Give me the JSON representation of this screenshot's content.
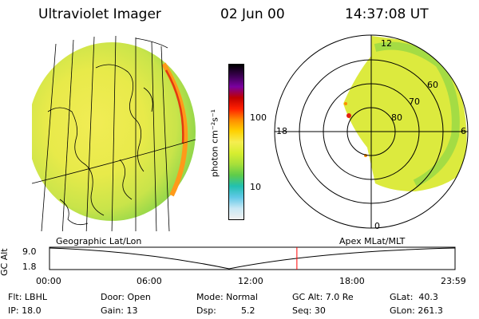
{
  "header": {
    "instrument": "Ultraviolet Imager",
    "date": "02 Jun 00",
    "time": "14:37:08 UT"
  },
  "colorbar": {
    "unit": "photon cm⁻²s⁻¹",
    "ticks": [
      "100",
      "10"
    ],
    "colors": [
      "#000000",
      "#3a0050",
      "#7a00a0",
      "#c00000",
      "#ff2000",
      "#ff8c00",
      "#ffd000",
      "#f5ee50",
      "#d7ee30",
      "#a8e03a",
      "#5fcc4a",
      "#22c0b0",
      "#60c8e6",
      "#c8e8f5",
      "#f0f0f0"
    ]
  },
  "left_map": {
    "label": "Geographic Lat/Lon"
  },
  "right_map": {
    "label": "Apex MLat/MLT",
    "mlt_labels": [
      "12",
      "18",
      "6",
      "0"
    ],
    "lat_labels": [
      "60",
      "70",
      "80"
    ]
  },
  "timeline": {
    "axis_label": "GC Alt",
    "y_ticks": [
      "9.0",
      "1.8"
    ],
    "x_ticks": [
      "00:00",
      "06:00",
      "12:00",
      "18:00",
      "23:59"
    ],
    "current_time_fraction": 0.61,
    "marker_color": "#ff0000"
  },
  "footer": {
    "filter": "Flt: LBHL",
    "ip": "IP: 18.0",
    "door": "Door: Open",
    "gain": "Gain: 13",
    "mode": "Mode: Normal",
    "dsp_label": "Dsp:",
    "dsp_value": "5.2",
    "gcalt": "GC Alt: 7.0 Re",
    "seq": "Seq: 30",
    "glat": "GLat:  40.3",
    "glon": "GLon: 261.3"
  }
}
